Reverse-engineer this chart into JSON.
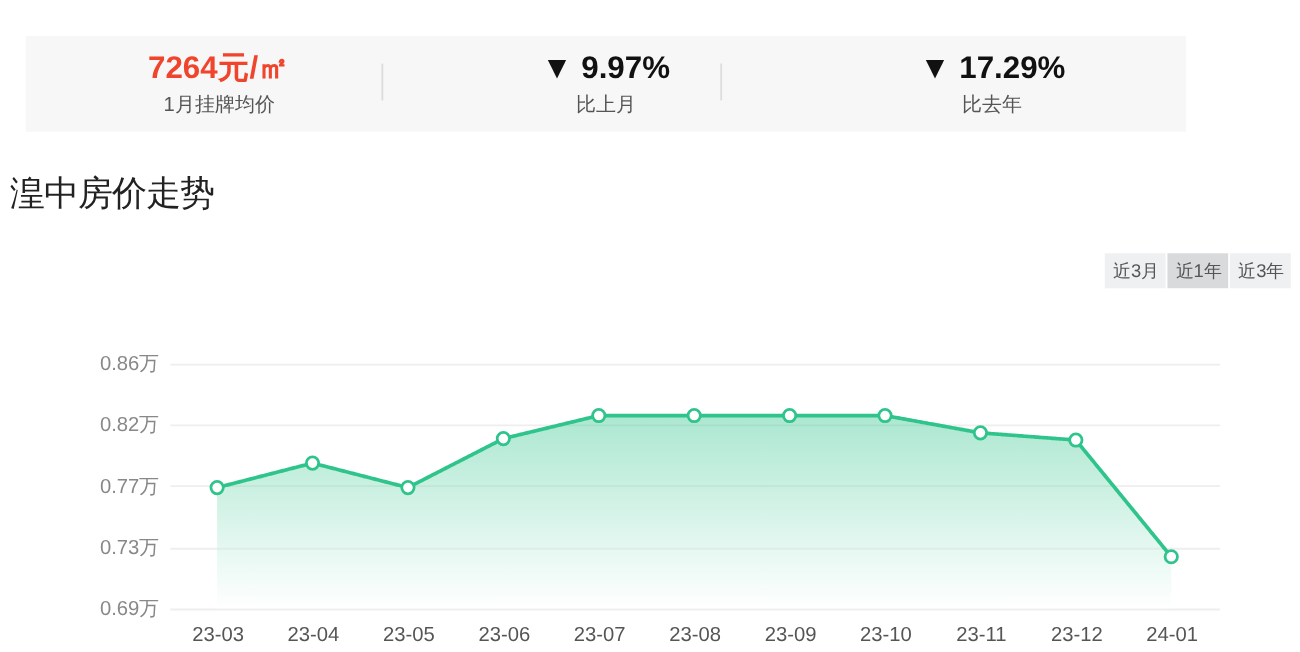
{
  "chart_data": [
    {
      "type": "other",
      "annotations": [
        "7264元/㎡",
        "1月挂牌均价",
        "▼ 9.97%",
        "比上月",
        "▼ 17.29%",
        "比去年"
      ]
    },
    {
      "type": "area",
      "title": "湟中房价走势",
      "annotations": [
        "近3月",
        "近1年",
        "近3年"
      ],
      "categories": [
        "23-03",
        "23-04",
        "23-05",
        "23-06",
        "23-07",
        "23-08",
        "23-09",
        "23-10",
        "23-11",
        "23-12",
        "24-01"
      ],
      "values": [
        0.774,
        0.791,
        0.774,
        0.808,
        0.824,
        0.824,
        0.824,
        0.824,
        0.812,
        0.807,
        0.726
      ],
      "color": "#2ec48b",
      "ylim": [
        0.69,
        0.86
      ],
      "yticks": [
        {
          "value": 0.69,
          "label": "0.69万"
        },
        {
          "value": 0.7325,
          "label": "0.73万"
        },
        {
          "value": 0.775,
          "label": "0.77万"
        },
        {
          "value": 0.8175,
          "label": "0.82万"
        },
        {
          "value": 0.86,
          "label": "0.86万"
        }
      ],
      "grid": "y",
      "marker": "circle",
      "line_style": "solid"
    }
  ]
}
